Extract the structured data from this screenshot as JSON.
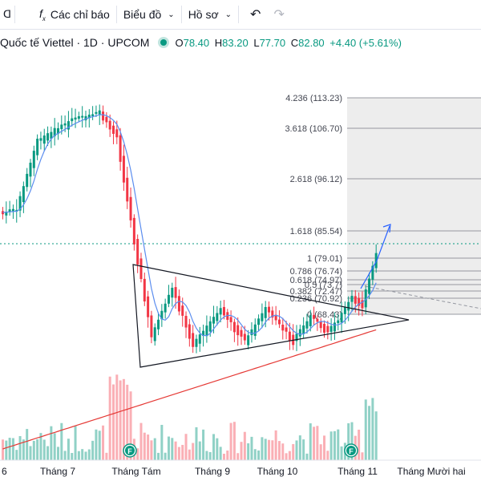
{
  "toolbar": {
    "fx_icon": "fx-icon",
    "indicators_label": "Các chỉ báo",
    "chart_type_label": "Biểu đồ",
    "profile_label": "Hồ sơ",
    "undo_icon": "undo-icon",
    "redo_icon": "redo-icon"
  },
  "legend": {
    "symbol": "Quốc tế Viettel · 1D · UPCOM",
    "open_key": "O",
    "open": "78.40",
    "high_key": "H",
    "high": "83.20",
    "low_key": "L",
    "low": "77.70",
    "close_key": "C",
    "close": "82.80",
    "change": "+4.40 (+5.61%)",
    "up_color": "#089981"
  },
  "fib_levels": [
    {
      "label": "4.236 (113.23)"
    },
    {
      "label": "3.618 (106.70)"
    },
    {
      "label": "2.618 (96.12)"
    },
    {
      "label": "1.618 (85.54)"
    },
    {
      "label": "1 (79.01)"
    },
    {
      "label": "0.786 (76.74)"
    },
    {
      "label": "0.618 (74.97)"
    },
    {
      "label": "0.5 (73.7)"
    },
    {
      "label": "0.382 (72.47)"
    },
    {
      "label": "0.236 (70.92)"
    },
    {
      "label": "0 (68.43)"
    }
  ],
  "x_axis": [
    "6",
    "Tháng 7",
    "Tháng Tám",
    "Tháng 9",
    "Tháng 10",
    "Tháng 11",
    "Tháng Mười hai"
  ],
  "event_marker": "F",
  "colors": {
    "up": "#089981",
    "down": "#f23645",
    "ma_blue": "#5b8def",
    "ma_red": "#e53935",
    "fib_fill": "#eeeeee"
  }
}
